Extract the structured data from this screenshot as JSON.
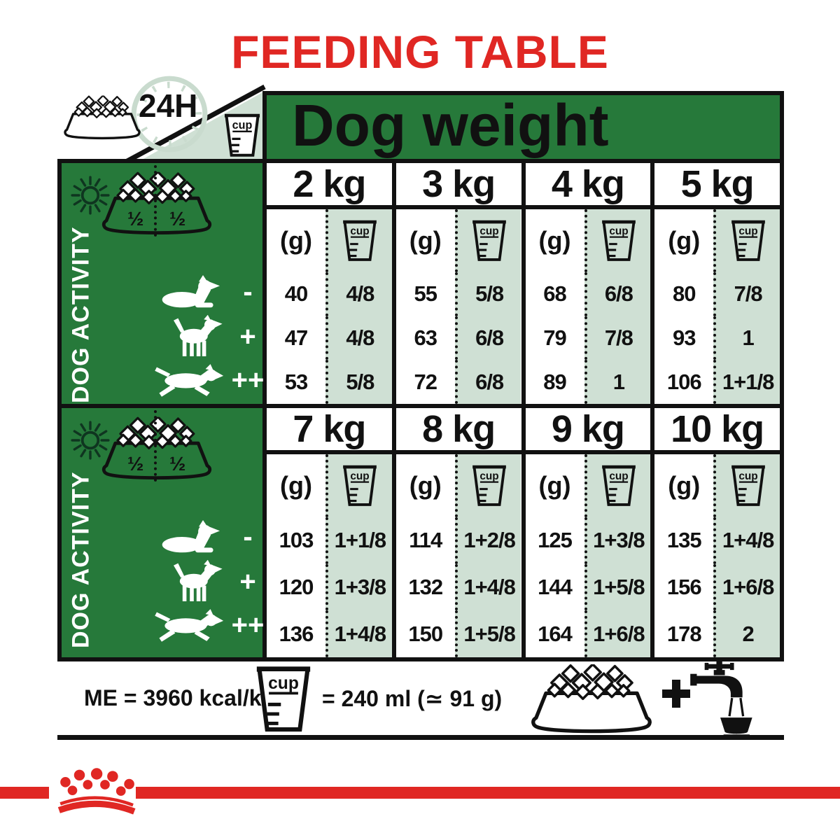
{
  "title": "FEEDING TABLE",
  "clock_label": "24H",
  "cup_label": "cup",
  "dog_weight_header": "Dog weight",
  "gram_unit_label": "(g)",
  "half_portion_label": "½",
  "activity_label": "DOG ACTIVITY",
  "activity_levels": [
    {
      "marker": "-",
      "icon": "lying-dog"
    },
    {
      "marker": "+",
      "icon": "standing-dog"
    },
    {
      "marker": "++",
      "icon": "running-dog"
    }
  ],
  "sections": [
    {
      "columns": [
        {
          "weight": "2 kg",
          "rows": [
            [
              "40",
              "4/8"
            ],
            [
              "47",
              "4/8"
            ],
            [
              "53",
              "5/8"
            ]
          ]
        },
        {
          "weight": "3 kg",
          "rows": [
            [
              "55",
              "5/8"
            ],
            [
              "63",
              "6/8"
            ],
            [
              "72",
              "6/8"
            ]
          ]
        },
        {
          "weight": "4 kg",
          "rows": [
            [
              "68",
              "6/8"
            ],
            [
              "79",
              "7/8"
            ],
            [
              "89",
              "1"
            ]
          ]
        },
        {
          "weight": "5 kg",
          "rows": [
            [
              "80",
              "7/8"
            ],
            [
              "93",
              "1"
            ],
            [
              "106",
              "1+1/8"
            ]
          ]
        }
      ]
    },
    {
      "columns": [
        {
          "weight": "7 kg",
          "rows": [
            [
              "103",
              "1+1/8"
            ],
            [
              "120",
              "1+3/8"
            ],
            [
              "136",
              "1+4/8"
            ]
          ]
        },
        {
          "weight": "8 kg",
          "rows": [
            [
              "114",
              "1+2/8"
            ],
            [
              "132",
              "1+4/8"
            ],
            [
              "150",
              "1+5/8"
            ]
          ]
        },
        {
          "weight": "9 kg",
          "rows": [
            [
              "125",
              "1+3/8"
            ],
            [
              "144",
              "1+5/8"
            ],
            [
              "164",
              "1+6/8"
            ]
          ]
        },
        {
          "weight": "10 kg",
          "rows": [
            [
              "135",
              "1+4/8"
            ],
            [
              "156",
              "1+6/8"
            ],
            [
              "178",
              "2"
            ]
          ]
        }
      ]
    }
  ],
  "footer": {
    "me_text": "ME = 3960 kcal/kg",
    "cup_equals_text": "= 240 ml (≃ 91 g)"
  },
  "colors": {
    "green": "#26793A",
    "light_green": "#CFE0D4",
    "red": "#E02723",
    "ink": "#111111"
  }
}
